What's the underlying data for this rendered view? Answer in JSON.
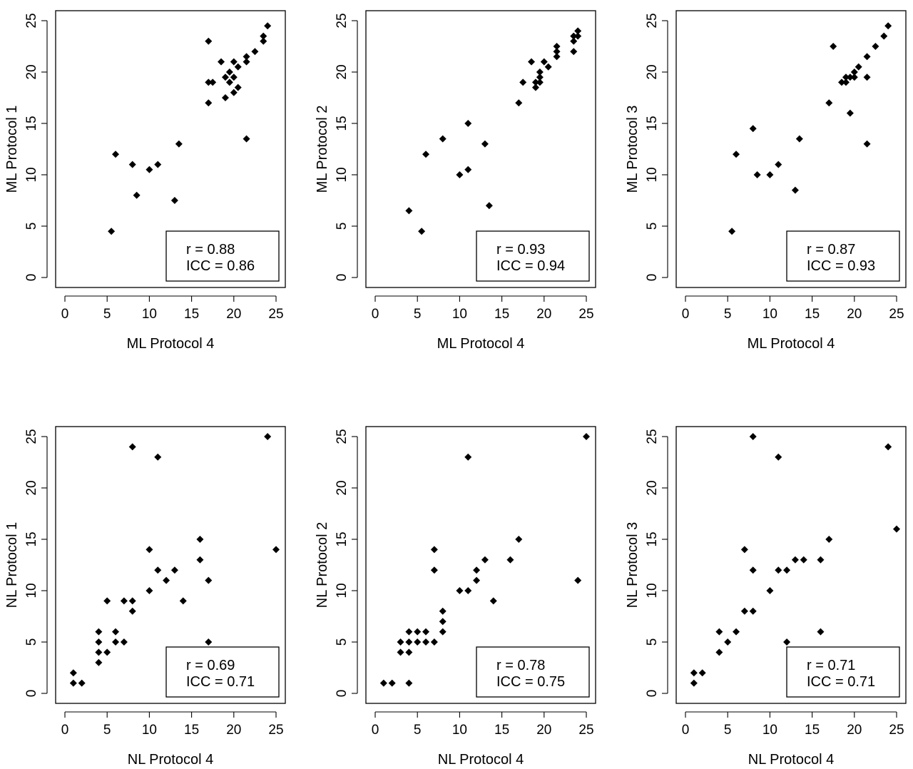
{
  "chart_data": [
    {
      "type": "scatter",
      "xlabel": "ML Protocol 4",
      "ylabel": "ML Protocol 1",
      "xlim": [
        0,
        25
      ],
      "ylim": [
        0,
        25
      ],
      "xticks": [
        "0",
        "5",
        "10",
        "15",
        "20",
        "25"
      ],
      "yticks": [
        "0",
        "5",
        "10",
        "15",
        "20",
        "25"
      ],
      "annotations": [
        "r = 0.88",
        "ICC = 0.86"
      ],
      "points": [
        [
          5.5,
          4.5
        ],
        [
          6,
          12
        ],
        [
          8,
          11
        ],
        [
          8.5,
          8
        ],
        [
          10,
          10.5
        ],
        [
          11,
          11
        ],
        [
          13,
          7.5
        ],
        [
          13.5,
          13
        ],
        [
          17,
          23
        ],
        [
          17,
          19
        ],
        [
          17,
          17
        ],
        [
          17.5,
          19
        ],
        [
          18.5,
          21
        ],
        [
          19,
          19.5
        ],
        [
          19,
          17.5
        ],
        [
          19.5,
          20
        ],
        [
          19.5,
          19
        ],
        [
          20,
          21
        ],
        [
          20,
          18
        ],
        [
          20,
          19.5
        ],
        [
          20.5,
          20.5
        ],
        [
          20.5,
          18.5
        ],
        [
          21.5,
          21.5
        ],
        [
          21.5,
          21
        ],
        [
          21.5,
          13.5
        ],
        [
          22.5,
          22
        ],
        [
          23.5,
          23.5
        ],
        [
          23.5,
          23
        ],
        [
          24,
          24.5
        ]
      ]
    },
    {
      "type": "scatter",
      "xlabel": "ML Protocol 4",
      "ylabel": "ML Protocol 2",
      "xlim": [
        0,
        25
      ],
      "ylim": [
        0,
        25
      ],
      "xticks": [
        "0",
        "5",
        "10",
        "15",
        "20",
        "25"
      ],
      "yticks": [
        "0",
        "5",
        "10",
        "15",
        "20",
        "25"
      ],
      "annotations": [
        "r = 0.93",
        "ICC = 0.94"
      ],
      "points": [
        [
          4,
          6.5
        ],
        [
          5.5,
          4.5
        ],
        [
          6,
          12
        ],
        [
          8,
          13.5
        ],
        [
          10,
          10
        ],
        [
          11,
          15
        ],
        [
          11,
          10.5
        ],
        [
          13,
          13
        ],
        [
          13.5,
          7
        ],
        [
          17,
          17
        ],
        [
          17.5,
          19
        ],
        [
          18.5,
          21
        ],
        [
          19,
          19
        ],
        [
          19,
          18.5
        ],
        [
          19.5,
          20
        ],
        [
          19.5,
          19.5
        ],
        [
          19.5,
          19
        ],
        [
          20,
          21
        ],
        [
          20.5,
          20.5
        ],
        [
          21.5,
          22.5
        ],
        [
          21.5,
          22
        ],
        [
          21.5,
          21.5
        ],
        [
          23.5,
          23.5
        ],
        [
          23.5,
          23
        ],
        [
          23.5,
          22
        ],
        [
          24,
          24
        ],
        [
          24,
          23.5
        ]
      ]
    },
    {
      "type": "scatter",
      "xlabel": "ML Protocol 4",
      "ylabel": "ML Protocol 3",
      "xlim": [
        0,
        25
      ],
      "ylim": [
        0,
        25
      ],
      "xticks": [
        "0",
        "5",
        "10",
        "15",
        "20",
        "25"
      ],
      "yticks": [
        "0",
        "5",
        "10",
        "15",
        "20",
        "25"
      ],
      "annotations": [
        "r = 0.87",
        "ICC = 0.93"
      ],
      "points": [
        [
          5.5,
          4.5
        ],
        [
          6,
          12
        ],
        [
          8,
          14.5
        ],
        [
          8.5,
          10
        ],
        [
          10,
          10
        ],
        [
          11,
          11
        ],
        [
          13,
          8.5
        ],
        [
          13.5,
          13.5
        ],
        [
          17,
          17
        ],
        [
          17.5,
          22.5
        ],
        [
          18.5,
          19
        ],
        [
          19,
          19.5
        ],
        [
          19,
          19
        ],
        [
          19.5,
          19.5
        ],
        [
          19.5,
          16
        ],
        [
          20,
          20
        ],
        [
          20,
          19.5
        ],
        [
          20.5,
          20.5
        ],
        [
          21.5,
          21.5
        ],
        [
          21.5,
          19.5
        ],
        [
          21.5,
          13
        ],
        [
          22.5,
          22.5
        ],
        [
          23.5,
          23.5
        ],
        [
          24,
          24.5
        ]
      ]
    },
    {
      "type": "scatter",
      "xlabel": "NL Protocol 4",
      "ylabel": "NL Protocol 1",
      "xlim": [
        0,
        25
      ],
      "ylim": [
        0,
        25
      ],
      "xticks": [
        "0",
        "5",
        "10",
        "15",
        "20",
        "25"
      ],
      "yticks": [
        "0",
        "5",
        "10",
        "15",
        "20",
        "25"
      ],
      "annotations": [
        "r = 0.69",
        "ICC = 0.71"
      ],
      "points": [
        [
          1,
          2
        ],
        [
          1,
          1
        ],
        [
          2,
          1
        ],
        [
          4,
          6
        ],
        [
          4,
          5
        ],
        [
          4,
          4
        ],
        [
          4,
          3
        ],
        [
          5,
          9
        ],
        [
          5,
          4
        ],
        [
          6,
          6
        ],
        [
          6,
          5
        ],
        [
          7,
          9
        ],
        [
          7,
          5
        ],
        [
          8,
          24
        ],
        [
          8,
          9
        ],
        [
          8,
          8
        ],
        [
          10,
          14
        ],
        [
          10,
          10
        ],
        [
          11,
          23
        ],
        [
          11,
          12
        ],
        [
          12,
          11
        ],
        [
          13,
          12
        ],
        [
          14,
          9
        ],
        [
          16,
          15
        ],
        [
          16,
          13
        ],
        [
          17,
          11
        ],
        [
          17,
          5
        ],
        [
          24,
          25
        ],
        [
          25,
          14
        ]
      ]
    },
    {
      "type": "scatter",
      "xlabel": "NL Protocol 4",
      "ylabel": "NL Protocol 2",
      "xlim": [
        0,
        25
      ],
      "ylim": [
        0,
        25
      ],
      "xticks": [
        "0",
        "5",
        "10",
        "15",
        "20",
        "25"
      ],
      "yticks": [
        "0",
        "5",
        "10",
        "15",
        "20",
        "25"
      ],
      "annotations": [
        "r = 0.78",
        "ICC = 0.75"
      ],
      "points": [
        [
          1,
          1
        ],
        [
          2,
          1
        ],
        [
          3,
          5
        ],
        [
          3,
          4
        ],
        [
          4,
          6
        ],
        [
          4,
          5
        ],
        [
          4,
          4
        ],
        [
          4,
          1
        ],
        [
          5,
          6
        ],
        [
          5,
          5
        ],
        [
          6,
          6
        ],
        [
          6,
          5
        ],
        [
          7,
          14
        ],
        [
          7,
          12
        ],
        [
          7,
          5
        ],
        [
          8,
          8
        ],
        [
          8,
          7
        ],
        [
          8,
          6
        ],
        [
          10,
          10
        ],
        [
          11,
          23
        ],
        [
          11,
          10
        ],
        [
          12,
          12
        ],
        [
          12,
          11
        ],
        [
          13,
          13
        ],
        [
          14,
          9
        ],
        [
          16,
          13
        ],
        [
          17,
          15
        ],
        [
          24,
          11
        ],
        [
          25,
          25
        ]
      ]
    },
    {
      "type": "scatter",
      "xlabel": "NL Protocol 4",
      "ylabel": "NL Protocol 3",
      "xlim": [
        0,
        25
      ],
      "ylim": [
        0,
        25
      ],
      "xticks": [
        "0",
        "5",
        "10",
        "15",
        "20",
        "25"
      ],
      "yticks": [
        "0",
        "5",
        "10",
        "15",
        "20",
        "25"
      ],
      "annotations": [
        "r = 0.71",
        "ICC = 0.71"
      ],
      "points": [
        [
          1,
          2
        ],
        [
          1,
          1
        ],
        [
          2,
          2
        ],
        [
          4,
          6
        ],
        [
          4,
          4
        ],
        [
          5,
          5
        ],
        [
          6,
          6
        ],
        [
          7,
          14
        ],
        [
          7,
          8
        ],
        [
          8,
          25
        ],
        [
          8,
          12
        ],
        [
          8,
          8
        ],
        [
          10,
          10
        ],
        [
          11,
          23
        ],
        [
          11,
          12
        ],
        [
          12,
          12
        ],
        [
          12,
          5
        ],
        [
          13,
          13
        ],
        [
          14,
          13
        ],
        [
          16,
          13
        ],
        [
          16,
          6
        ],
        [
          17,
          15
        ],
        [
          24,
          24
        ],
        [
          25,
          16
        ]
      ]
    }
  ]
}
